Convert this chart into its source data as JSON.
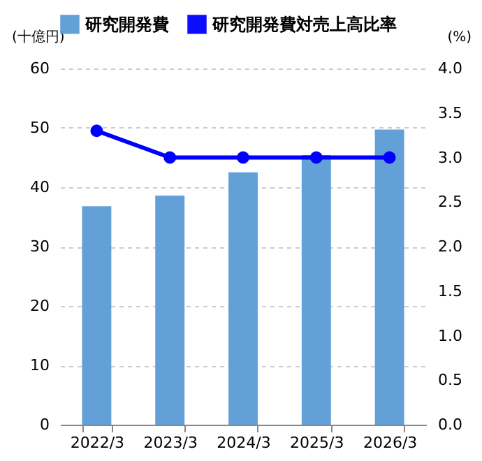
{
  "chart_data": {
    "type": "bar",
    "ylabel": "(十億円)",
    "y2label": "(%)",
    "categories": [
      "2022/3",
      "2023/3",
      "2024/3",
      "2025/3",
      "2026/3"
    ],
    "series": [
      {
        "name": "研究開発費",
        "color": "#5b9bd5",
        "values": [
          36.8,
          38.6,
          42.5,
          45.4,
          49.7
        ]
      },
      {
        "name": "研究開発費対売上高比率",
        "type": "line",
        "axis": "y2",
        "marker": "circle",
        "line_style": "solid",
        "color": "#0000ff",
        "values": [
          3.3,
          3.0,
          3.0,
          3.0,
          3.0
        ]
      }
    ],
    "ylim": [
      0,
      60
    ],
    "yticks": [
      0,
      10,
      20,
      30,
      40,
      50,
      60
    ],
    "y2lim": [
      0,
      4
    ],
    "y2ticks": [
      {
        "value": 0,
        "label": "0.0"
      },
      {
        "value": 0.5,
        "label": "0.5"
      },
      {
        "value": 1,
        "label": "1.0"
      },
      {
        "value": 1.5,
        "label": "1.5"
      },
      {
        "value": 2,
        "label": "2.0"
      },
      {
        "value": 2.5,
        "label": "2.5"
      },
      {
        "value": 3,
        "label": "3.0"
      },
      {
        "value": 3.5,
        "label": "3.5"
      },
      {
        "value": 4,
        "label": "4.0"
      }
    ],
    "grid": "y",
    "legend": "top"
  }
}
